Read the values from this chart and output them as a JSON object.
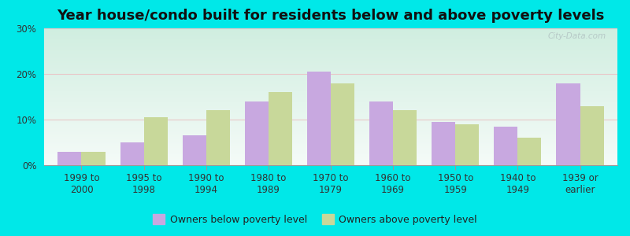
{
  "title": "Year house/condo built for residents below and above poverty levels",
  "categories": [
    "1999 to\n2000",
    "1995 to\n1998",
    "1990 to\n1994",
    "1980 to\n1989",
    "1970 to\n1979",
    "1960 to\n1969",
    "1950 to\n1959",
    "1940 to\n1949",
    "1939 or\nearlier"
  ],
  "below_poverty": [
    3.0,
    5.0,
    6.5,
    14.0,
    20.5,
    14.0,
    9.5,
    8.5,
    18.0
  ],
  "above_poverty": [
    3.0,
    10.5,
    12.0,
    16.0,
    18.0,
    12.0,
    9.0,
    6.0,
    13.0
  ],
  "below_color": "#c8a8e0",
  "above_color": "#c8d89a",
  "background_outer": "#00e8e8",
  "background_plot_top": "#d0eee0",
  "background_plot_bottom": "#f5fbf8",
  "grid_color": "#e8c8c8",
  "ylim": [
    0,
    30
  ],
  "yticks": [
    0,
    10,
    20,
    30
  ],
  "legend_below_label": "Owners below poverty level",
  "legend_above_label": "Owners above poverty level",
  "title_fontsize": 13,
  "tick_fontsize": 8.5,
  "legend_fontsize": 9,
  "bar_width": 0.38,
  "watermark": "City-Data.com"
}
